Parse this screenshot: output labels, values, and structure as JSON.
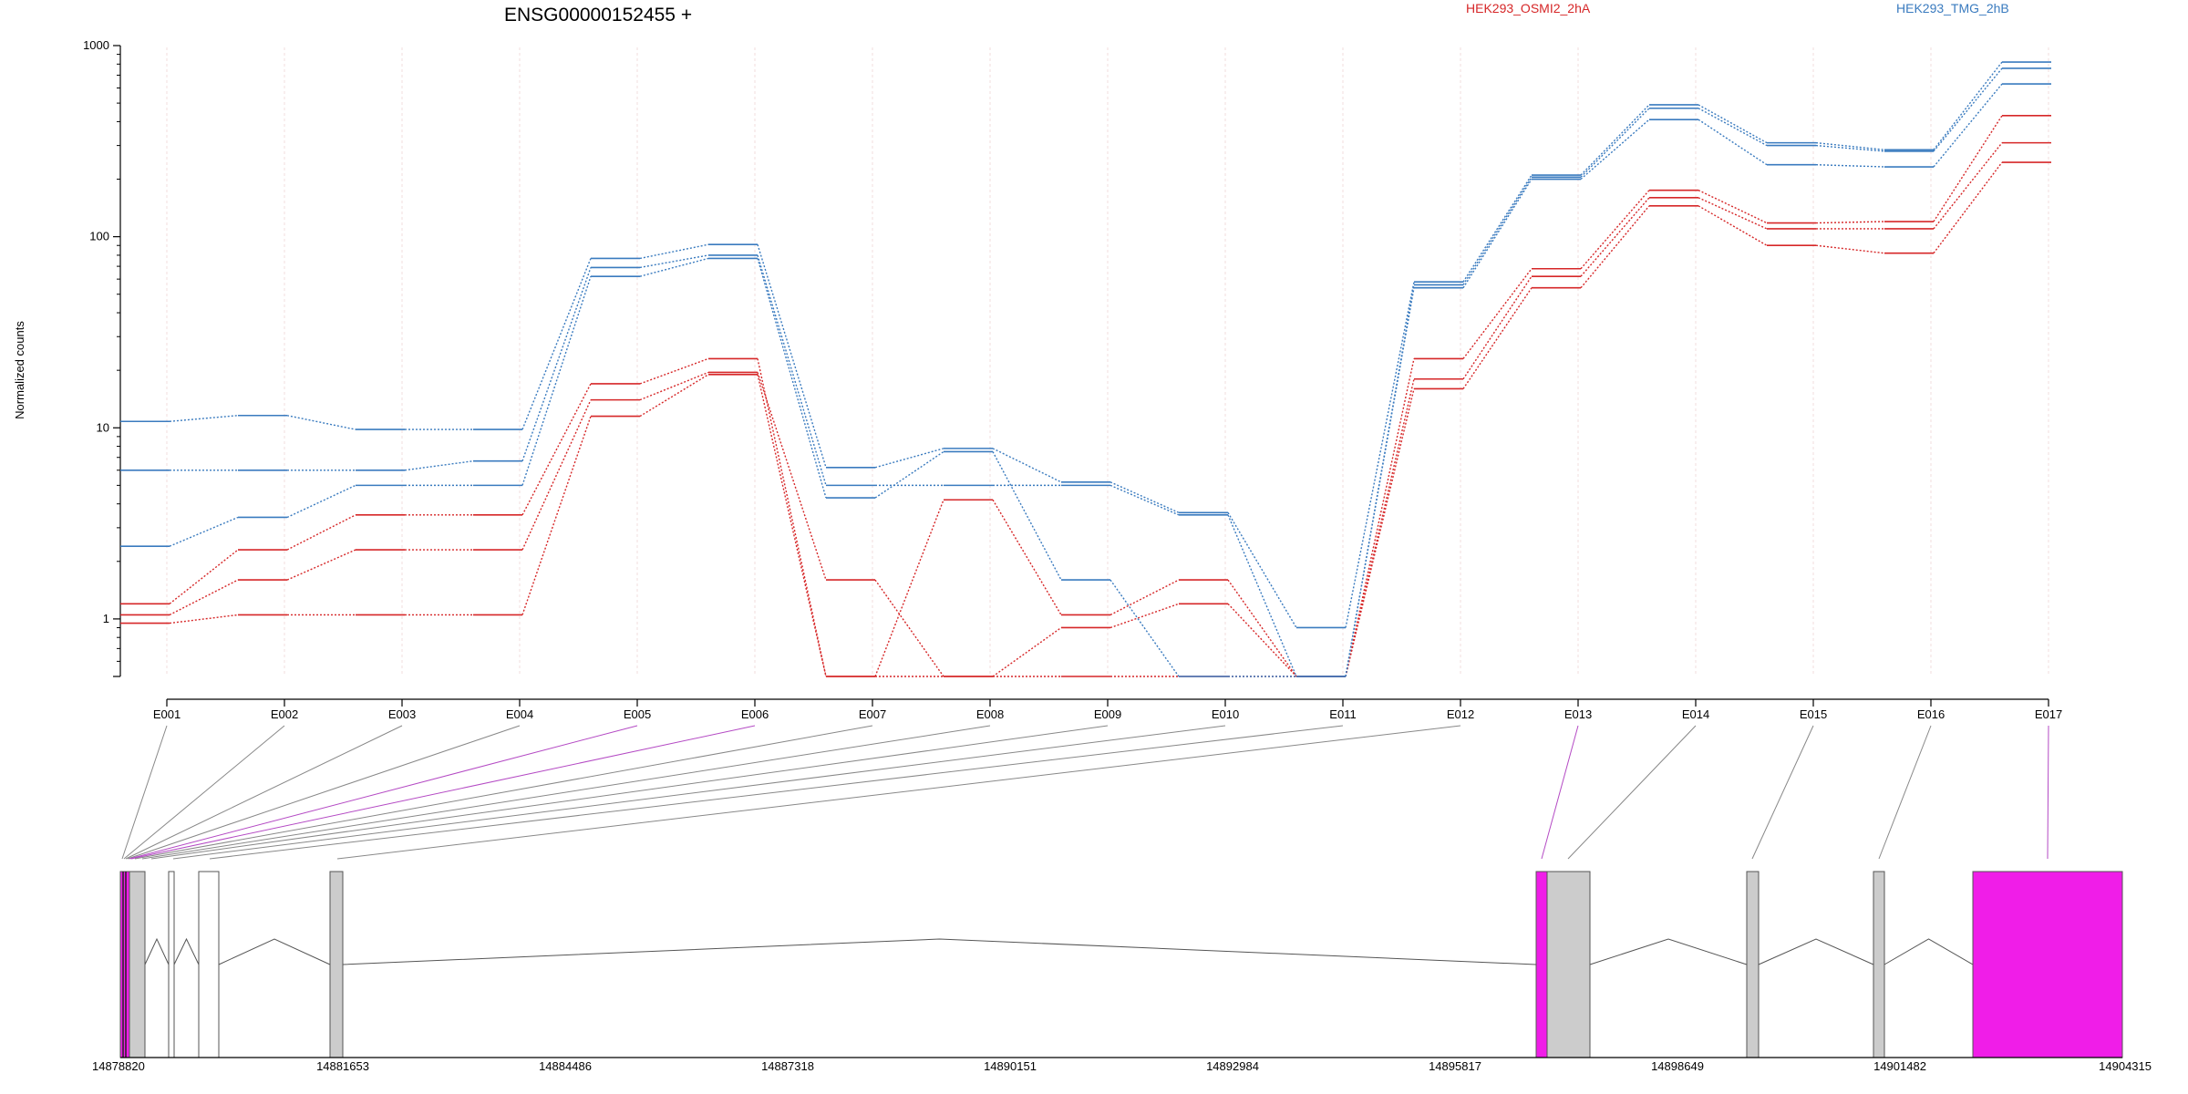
{
  "chart_data": {
    "type": "line",
    "title": "ENSG00000152455 +",
    "ylabel": "Normalized counts",
    "xlabel": "",
    "yscale": "log",
    "ylim": [
      0.5,
      1000
    ],
    "yticks": [
      "1",
      "10",
      "100",
      "1000"
    ],
    "grid": true,
    "legend": "top",
    "categories": [
      "E001",
      "E002",
      "E003",
      "E004",
      "E005",
      "E006",
      "E007",
      "E008",
      "E009",
      "E010",
      "E011",
      "E012",
      "E013",
      "E014",
      "E015",
      "E016",
      "E017"
    ],
    "series": [
      {
        "name": "HEK293_OSMI2_2hA",
        "color": "#d62728",
        "values": [
          1.2,
          2.3,
          3.5,
          3.5,
          17,
          23,
          0.5,
          4.2,
          1.05,
          1.6,
          0.5,
          23,
          68,
          175,
          118,
          120,
          430
        ]
      },
      {
        "color": "#d62728",
        "values": [
          1.05,
          1.6,
          2.3,
          2.3,
          14,
          19.5,
          1.6,
          0.5,
          0.9,
          1.2,
          0.5,
          18,
          62,
          160,
          110,
          110,
          310
        ]
      },
      {
        "color": "#d62728",
        "values": [
          0.95,
          1.05,
          1.05,
          1.05,
          11.5,
          19,
          0.5,
          0.5,
          0.5,
          0.5,
          0.5,
          16,
          54,
          145,
          90,
          82,
          245
        ]
      },
      {
        "name": "HEK293_TMG_2hB",
        "color": "#3a7bbf",
        "values": [
          10.8,
          11.6,
          9.8,
          9.8,
          77,
          91,
          6.2,
          7.8,
          5.2,
          3.6,
          0.9,
          58,
          210,
          490,
          310,
          285,
          820
        ]
      },
      {
        "color": "#3a7bbf",
        "values": [
          6.0,
          6.0,
          6.0,
          6.7,
          69,
          80,
          5.0,
          5.0,
          5.0,
          3.5,
          0.5,
          56,
          205,
          470,
          300,
          280,
          760
        ]
      },
      {
        "color": "#3a7bbf",
        "values": [
          2.4,
          3.4,
          5.0,
          5.0,
          62,
          77,
          4.3,
          7.5,
          1.6,
          0.5,
          0.5,
          54,
          200,
          410,
          238,
          232,
          630
        ]
      }
    ],
    "gene_model": {
      "coordinate_ticks": [
        "14878820",
        "14881653",
        "14884486",
        "14887318",
        "14890151",
        "14892984",
        "14895817",
        "14898649",
        "14901482",
        "14904315"
      ],
      "highlight_color": "#f01de8",
      "exon_color": "#cccccc",
      "highlighted_exons": [
        "E005",
        "E006",
        "E013",
        "E017"
      ]
    }
  }
}
